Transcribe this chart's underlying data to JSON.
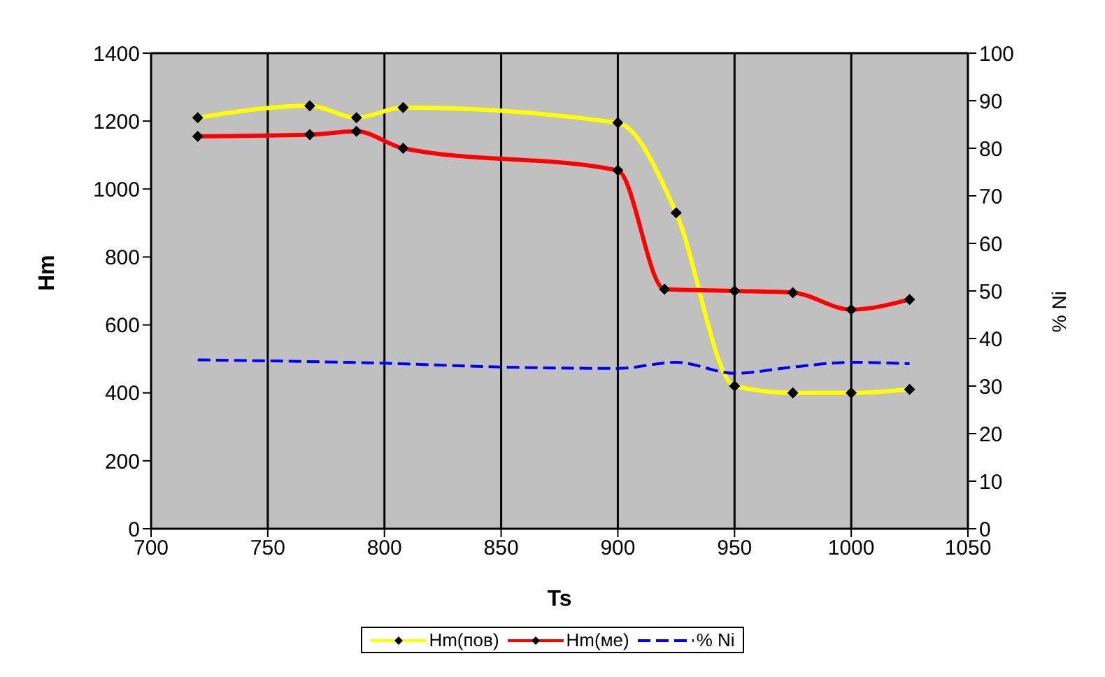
{
  "chart_data": {
    "type": "line",
    "xlabel": "Ts",
    "ylabel": "Hm",
    "y2label": "% Ni",
    "xlim": [
      700,
      1050
    ],
    "xticks": [
      700,
      750,
      800,
      850,
      900,
      950,
      1000,
      1050
    ],
    "ylim": [
      0,
      1400
    ],
    "yticks": [
      0,
      200,
      400,
      600,
      800,
      1000,
      1200,
      1400
    ],
    "y2lim": [
      0,
      100
    ],
    "y2ticks": [
      0,
      10,
      20,
      30,
      40,
      50,
      60,
      70,
      80,
      90,
      100
    ],
    "grid": true,
    "legend": "bottom",
    "marker": "diamond",
    "series": [
      {
        "name": "Hm(пов)",
        "color": "#ffff00",
        "x": [
          720,
          768,
          788,
          808,
          900,
          925,
          950,
          975,
          1000,
          1025
        ],
        "values": [
          1210,
          1245,
          1210,
          1240,
          1195,
          930,
          420,
          400,
          400,
          410
        ]
      },
      {
        "name": "Hm(ме)",
        "color": "#ff0000",
        "x": [
          720,
          768,
          788,
          808,
          900,
          920,
          950,
          975,
          1000,
          1025
        ],
        "values": [
          1155,
          1160,
          1170,
          1120,
          1055,
          705,
          700,
          695,
          645,
          675
        ]
      },
      {
        "name": "% Ni",
        "color": "#0000ff",
        "axis": "y2",
        "marker": "none",
        "line_style": "dashed",
        "x": [
          720,
          800,
          850,
          900,
          925,
          950,
          975,
          1000,
          1025
        ],
        "values": [
          35.5,
          34.8,
          34,
          33.7,
          35,
          32.7,
          34,
          35,
          34.7
        ]
      }
    ]
  }
}
